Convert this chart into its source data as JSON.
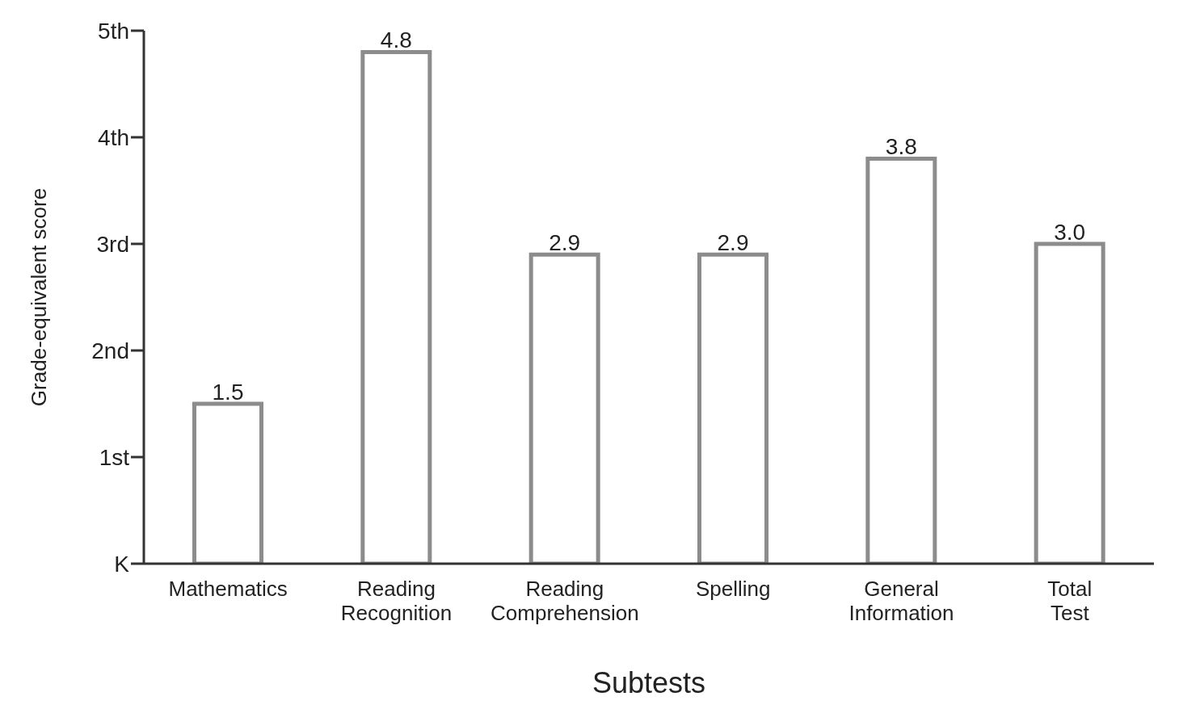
{
  "chart_data": {
    "type": "bar",
    "xlabel": "Subtests",
    "ylabel": "Grade-equivalent score",
    "categories": [
      "Mathematics",
      "Reading Recognition",
      "Reading Comprehension",
      "Spelling",
      "General Information",
      "Total Test"
    ],
    "values": [
      1.5,
      4.8,
      2.9,
      2.9,
      3.8,
      3.0
    ],
    "color": "#8c8c8c",
    "ylim": [
      0,
      5
    ],
    "yticks": [
      {
        "value": 0,
        "label": "K"
      },
      {
        "value": 1,
        "label": "1st"
      },
      {
        "value": 2,
        "label": "2nd"
      },
      {
        "value": 3,
        "label": "3rd"
      },
      {
        "value": 4,
        "label": "4th"
      },
      {
        "value": 5,
        "label": "5th"
      }
    ],
    "value_labels": [
      "1.5",
      "4.8",
      "2.9",
      "2.9",
      "3.8",
      "3.0"
    ],
    "grid": false,
    "legend": false
  }
}
